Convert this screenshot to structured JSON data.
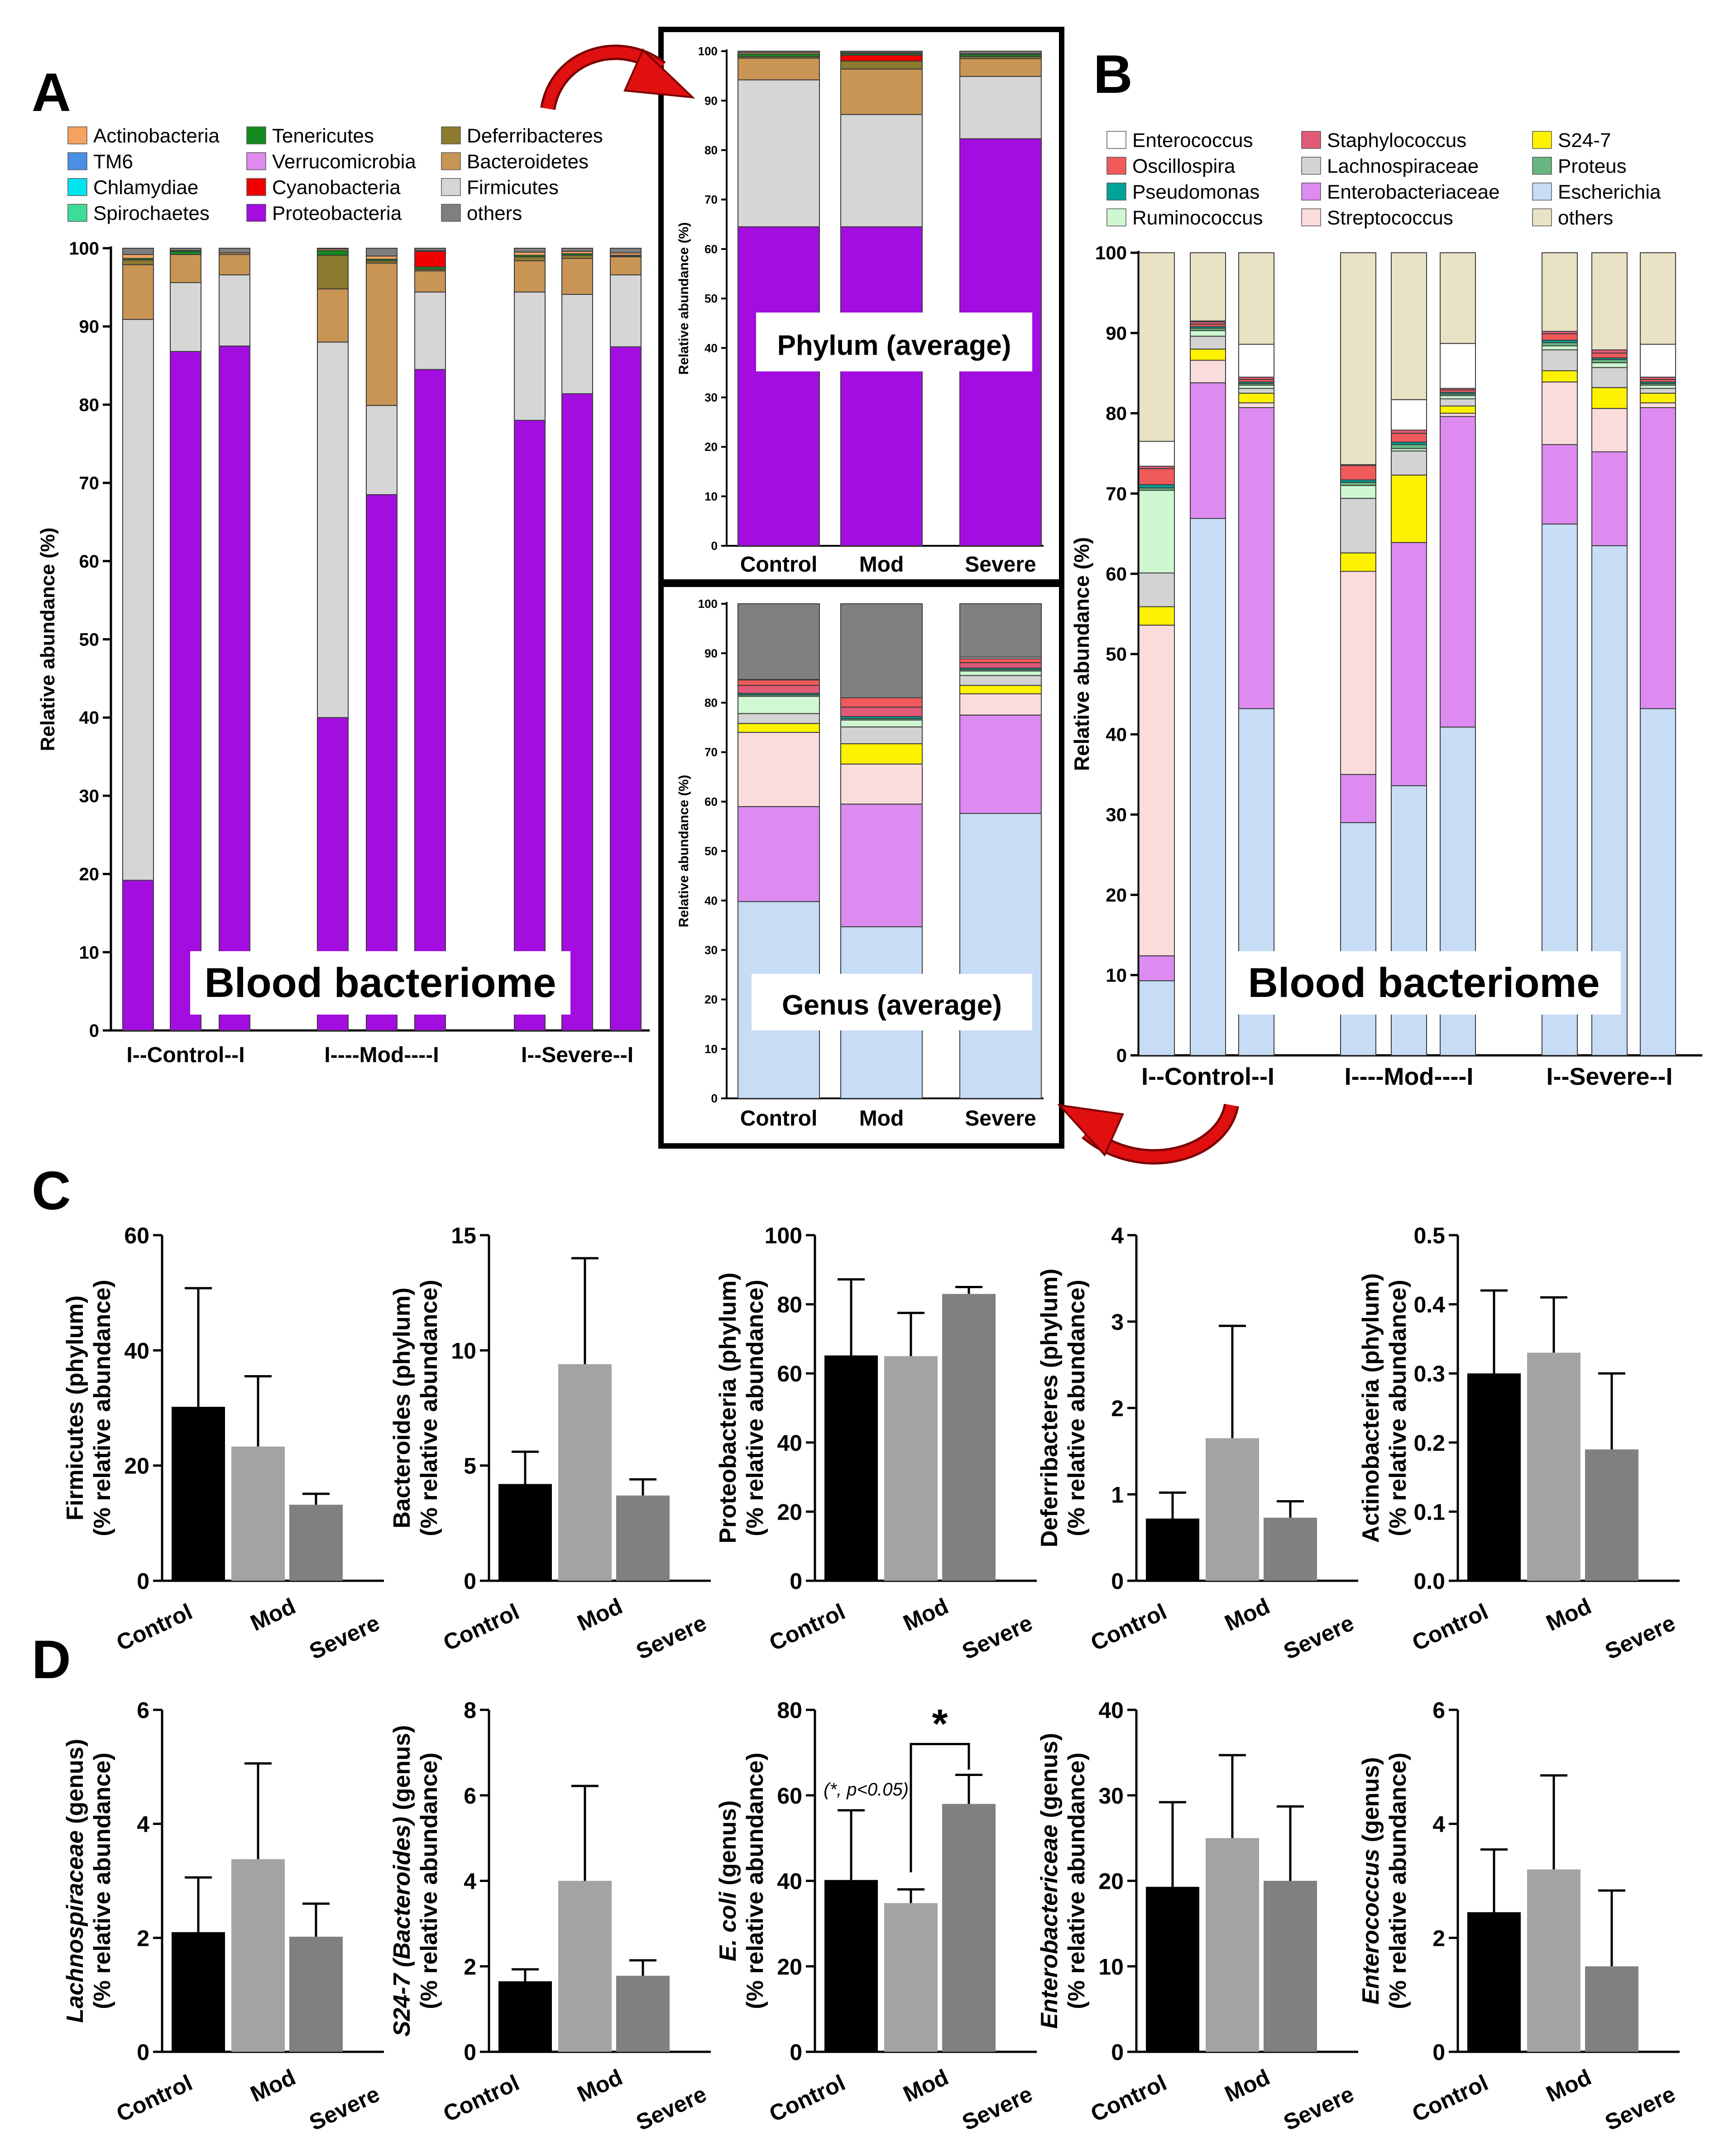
{
  "panel_labels": {
    "A": "A",
    "B": "B",
    "C": "C",
    "D": "D"
  },
  "colors": {
    "Actinobacteria": "#F4A460",
    "TM6": "#4A90E2",
    "Chlamydiae": "#00E5EE",
    "Spirochaetes": "#3DDC97",
    "Tenericutes": "#138A1E",
    "Verrucomicrobia": "#E08BF0",
    "Cyanobacteria": "#F20000",
    "Proteobacteria": "#A30DDF",
    "Deferribacteres": "#8C7A2E",
    "Bacteroidetes": "#C99554",
    "Firmicutes": "#D6D6D6",
    "others_phylum": "#7F7F7F",
    "Enterococcus": "#FFFFFF",
    "Oscillospira": "#F05A5A",
    "Pseudomonas": "#00A29A",
    "Ruminococcus": "#CFF7D2",
    "Staphylococcus": "#E15A78",
    "Lachnospiraceae": "#D3D3D3",
    "Enterobacteriaceae": "#DD8BF0",
    "Streptococcus": "#FADCDC",
    "S24-7": "#FFF200",
    "Proteus": "#68B580",
    "Escherichia": "#C7DCF5",
    "others_genus": "#E9E2C4",
    "others_genus_avg": "#808080",
    "control_bar": "#000000",
    "mod_bar": "#A3A3A6",
    "severe_bar": "#808080",
    "arrow": "#E01010"
  },
  "chart_data": [
    {
      "id": "A",
      "type": "bar",
      "stacked": true,
      "title": "Blood bacteriome",
      "ylabel": "Relative abundance (%)",
      "ylim": [
        0,
        100
      ],
      "yticks": [
        "0",
        "10",
        "20",
        "30",
        "40",
        "50",
        "60",
        "70",
        "80",
        "90",
        "100"
      ],
      "group_labels": [
        "I--Control--I",
        "I----Mod----I",
        "I--Severe--I"
      ],
      "legend": [
        "Actinobacteria",
        "TM6",
        "Chlamydiae",
        "Spirochaetes",
        "Tenericutes",
        "Verrucomicrobia",
        "Cyanobacteria",
        "Proteobacteria",
        "Deferribacteres",
        "Bacteroidetes",
        "Firmicutes",
        "others"
      ],
      "stack_order": [
        "Proteobacteria",
        "Firmicutes",
        "Bacteroidetes",
        "Deferribacteres",
        "Tenericutes",
        "Cyanobacteria",
        "Actinobacteria",
        "others"
      ],
      "bars": [
        {
          "group": "Control",
          "values": [
            19.2,
            71.7,
            7.0,
            0.6,
            0.2,
            0.0,
            0.5,
            0.8
          ]
        },
        {
          "group": "Control",
          "values": [
            86.8,
            8.8,
            3.6,
            0.0,
            0.4,
            0.0,
            0.1,
            0.3
          ]
        },
        {
          "group": "Control",
          "values": [
            87.5,
            9.1,
            2.6,
            0.0,
            0.0,
            0.0,
            0.2,
            0.6
          ]
        },
        {
          "group": "Mod",
          "values": [
            40.0,
            48.0,
            6.8,
            4.3,
            0.6,
            0.0,
            0.2,
            0.1
          ]
        },
        {
          "group": "Mod",
          "values": [
            68.5,
            11.4,
            18.2,
            0.3,
            0.2,
            0.0,
            0.4,
            1.0
          ]
        },
        {
          "group": "Mod",
          "values": [
            84.5,
            9.9,
            2.7,
            0.2,
            0.3,
            2.0,
            0.1,
            0.3
          ]
        },
        {
          "group": "Severe",
          "values": [
            78.0,
            16.4,
            4.0,
            0.5,
            0.2,
            0.0,
            0.4,
            0.5
          ]
        },
        {
          "group": "Severe",
          "values": [
            81.4,
            12.7,
            4.6,
            0.4,
            0.2,
            0.0,
            0.3,
            0.4
          ]
        },
        {
          "group": "Severe",
          "values": [
            87.4,
            9.2,
            2.3,
            0.1,
            0.1,
            0.0,
            0.3,
            0.6
          ]
        }
      ]
    },
    {
      "id": "A_inset",
      "type": "bar",
      "stacked": true,
      "title": "Phylum (average)",
      "ylabel": "Relative abundance (%)",
      "ylim": [
        0,
        100
      ],
      "yticks": [
        "0",
        "10",
        "20",
        "30",
        "40",
        "50",
        "60",
        "70",
        "80",
        "90",
        "100"
      ],
      "categories": [
        "Control",
        "Mod",
        "Severe"
      ],
      "stack_order": [
        "Proteobacteria",
        "Firmicutes",
        "Bacteroidetes",
        "Deferribacteres",
        "Cyanobacteria",
        "Tenericutes",
        "Actinobacteria",
        "others"
      ],
      "bars": [
        {
          "values": [
            64.5,
            29.7,
            4.4,
            0.3,
            0.0,
            0.5,
            0.3,
            0.3
          ]
        },
        {
          "values": [
            64.5,
            22.7,
            9.2,
            1.6,
            1.2,
            0.3,
            0.2,
            0.3
          ]
        },
        {
          "values": [
            82.3,
            12.6,
            3.6,
            0.4,
            0.0,
            0.4,
            0.2,
            0.5
          ]
        }
      ]
    },
    {
      "id": "B",
      "type": "bar",
      "stacked": true,
      "title": "Blood bacteriome",
      "ylabel": "Relative abundance (%)",
      "ylim": [
        0,
        100
      ],
      "yticks": [
        "0",
        "10",
        "20",
        "30",
        "40",
        "50",
        "60",
        "70",
        "80",
        "90",
        "100"
      ],
      "group_labels": [
        "I--Control--I",
        "I----Mod----I",
        "I--Severe--I"
      ],
      "legend": [
        "Enterococcus",
        "Oscillospira",
        "Pseudomonas",
        "Ruminococcus",
        "Staphylococcus",
        "Lachnospiraceae",
        "Enterobacteriaceae",
        "Streptococcus",
        "S24-7",
        "Proteus",
        "Escherichia",
        "others"
      ],
      "stack_order": [
        "Escherichia",
        "Enterobacteriaceae",
        "Streptococcus",
        "S24-7",
        "Lachnospiraceae",
        "Ruminococcus",
        "Proteus",
        "Pseudomonas",
        "Oscillospira",
        "Staphylococcus",
        "Enterococcus",
        "others"
      ],
      "bars": [
        {
          "values": [
            9.3,
            3.1,
            41.2,
            2.3,
            4.2,
            10.3,
            0.3,
            0.4,
            2.0,
            0.3,
            3.1,
            23.5
          ]
        },
        {
          "values": [
            66.9,
            16.9,
            2.8,
            1.4,
            1.6,
            0.7,
            0.3,
            0.2,
            0.3,
            0.3,
            0.1,
            9.0
          ]
        },
        {
          "values": [
            43.2,
            37.5,
            0.6,
            1.2,
            0.6,
            0.4,
            0.2,
            0.2,
            0.3,
            0.3,
            4.1,
            11.4
          ]
        },
        {
          "values": [
            29.0,
            6.0,
            25.3,
            2.3,
            6.8,
            1.6,
            0.4,
            0.3,
            1.8,
            0.1,
            0.0,
            26.4
          ]
        },
        {
          "values": [
            33.6,
            30.3,
            0.0,
            8.4,
            3.0,
            0.3,
            0.5,
            0.3,
            1.1,
            0.4,
            3.8,
            18.3
          ]
        },
        {
          "values": [
            40.9,
            38.7,
            0.4,
            0.9,
            0.9,
            0.4,
            0.2,
            0.2,
            0.3,
            0.2,
            5.6,
            11.3
          ]
        },
        {
          "values": [
            66.2,
            9.9,
            7.8,
            1.4,
            2.6,
            0.5,
            0.4,
            0.3,
            0.8,
            0.3,
            0.0,
            9.8
          ]
        },
        {
          "values": [
            63.5,
            11.7,
            5.4,
            2.6,
            2.5,
            0.6,
            0.4,
            0.2,
            0.6,
            0.4,
            0.0,
            12.1
          ]
        },
        {
          "values": [
            43.2,
            37.5,
            0.6,
            1.2,
            0.6,
            0.4,
            0.2,
            0.2,
            0.3,
            0.3,
            4.1,
            11.4
          ]
        }
      ]
    },
    {
      "id": "B_inset",
      "type": "bar",
      "stacked": true,
      "title": "Genus (average)",
      "ylabel": "Relative abundance (%)",
      "ylim": [
        0,
        100
      ],
      "yticks": [
        "0",
        "10",
        "20",
        "30",
        "40",
        "50",
        "60",
        "70",
        "80",
        "90",
        "100"
      ],
      "categories": [
        "Control",
        "Mod",
        "Severe"
      ],
      "stack_order": [
        "Escherichia",
        "Enterobacteriaceae",
        "Streptococcus",
        "S24-7",
        "Lachnospiraceae",
        "Ruminococcus",
        "Proteus",
        "Pseudomonas",
        "Staphylococcus",
        "Oscillospira",
        "Enterococcus",
        "others"
      ],
      "bars": [
        {
          "values": [
            39.8,
            19.2,
            15.0,
            1.8,
            2.0,
            3.5,
            0.3,
            0.3,
            1.6,
            1.1,
            0.1,
            15.3
          ]
        },
        {
          "values": [
            34.7,
            24.8,
            8.1,
            4.1,
            3.4,
            1.4,
            0.3,
            0.4,
            1.9,
            1.9,
            0.0,
            19.0
          ]
        },
        {
          "values": [
            57.6,
            19.9,
            4.3,
            1.7,
            2.0,
            0.9,
            0.3,
            0.3,
            1.1,
            0.8,
            0.3,
            10.8
          ]
        }
      ]
    },
    {
      "id": "C1",
      "type": "bar",
      "categories": [
        "Control",
        "Mod",
        "Severe"
      ],
      "ylabel_main": "Firmicutes (phylum)",
      "ylabel_sub": "(% relative abundance)",
      "ylim": [
        0,
        60
      ],
      "yticks": [
        "0",
        "20",
        "40",
        "60"
      ],
      "values": [
        30.2,
        23.3,
        13.2
      ],
      "errors": [
        20.6,
        12.2,
        1.9
      ]
    },
    {
      "id": "C2",
      "type": "bar",
      "categories": [
        "Control",
        "Mod",
        "Severe"
      ],
      "ylabel_main": "Bacteroides (phylum)",
      "ylabel_sub": "(% relative abundance)",
      "ylim": [
        0,
        15
      ],
      "yticks": [
        "0",
        "5",
        "10",
        "15"
      ],
      "values": [
        4.2,
        9.4,
        3.7
      ],
      "errors": [
        1.4,
        4.6,
        0.7
      ]
    },
    {
      "id": "C3",
      "type": "bar",
      "categories": [
        "Control",
        "Mod",
        "Severe"
      ],
      "ylabel_main": "Proteobacteria (phylum)",
      "ylabel_sub": "(% relative abundance)",
      "ylim": [
        0,
        100
      ],
      "yticks": [
        "0",
        "20",
        "40",
        "60",
        "80",
        "100"
      ],
      "values": [
        65.2,
        65.0,
        83.0
      ],
      "errors": [
        22.0,
        12.5,
        2.0
      ]
    },
    {
      "id": "C4",
      "type": "bar",
      "categories": [
        "Control",
        "Mod",
        "Severe"
      ],
      "ylabel_main": "Deferribacteres (phylum)",
      "ylabel_sub": "(% relative abundance)",
      "ylim": [
        0,
        4
      ],
      "yticks": [
        "0",
        "1",
        "2",
        "3",
        "4"
      ],
      "values": [
        0.72,
        1.65,
        0.73
      ],
      "errors": [
        0.3,
        1.3,
        0.19
      ]
    },
    {
      "id": "C5",
      "type": "bar",
      "categories": [
        "Control",
        "Mod",
        "Severe"
      ],
      "ylabel_main": "Actinobacteria (phylum)",
      "ylabel_sub": "(% relative abundance)",
      "ylim": [
        0,
        0.5
      ],
      "yticks": [
        "0.0",
        "0.1",
        "0.2",
        "0.3",
        "0.4",
        "0.5"
      ],
      "values": [
        0.3,
        0.33,
        0.19
      ],
      "errors": [
        0.12,
        0.08,
        0.11
      ]
    },
    {
      "id": "D1",
      "type": "bar",
      "categories": [
        "Control",
        "Mod",
        "Severe"
      ],
      "ylabel_main": "Lachnospiraceae",
      "ylabel_italic": true,
      "ylabel_suffix": " (genus)",
      "ylabel_sub": "(% relative abundance)",
      "ylim": [
        0,
        6
      ],
      "yticks": [
        "0",
        "2",
        "4",
        "6"
      ],
      "values": [
        2.1,
        3.38,
        2.02
      ],
      "errors": [
        0.96,
        1.68,
        0.58
      ]
    },
    {
      "id": "D2",
      "type": "bar",
      "categories": [
        "Control",
        "Mod",
        "Severe"
      ],
      "ylabel_main": "S24-7 (Bacteroides)",
      "ylabel_italic": true,
      "ylabel_suffix": " (genus)",
      "ylabel_sub": "(% relative abundance)",
      "ylim": [
        0,
        8
      ],
      "yticks": [
        "0",
        "2",
        "4",
        "6",
        "8"
      ],
      "values": [
        1.65,
        4.0,
        1.78
      ],
      "errors": [
        0.28,
        2.22,
        0.36
      ]
    },
    {
      "id": "D3",
      "type": "bar",
      "categories": [
        "Control",
        "Mod",
        "Severe"
      ],
      "ylabel_main": "E. coli",
      "ylabel_italic": true,
      "ylabel_suffix": " (genus)",
      "ylabel_sub": "(% relative abundance)",
      "ylim": [
        0,
        80
      ],
      "yticks": [
        "0",
        "20",
        "40",
        "60",
        "80"
      ],
      "values": [
        40.2,
        34.8,
        58.0
      ],
      "errors": [
        16.3,
        3.2,
        6.8
      ],
      "significance": {
        "between": [
          "Mod",
          "Severe"
        ],
        "marker": "*",
        "note": "(*, p<0.05)"
      }
    },
    {
      "id": "D4",
      "type": "bar",
      "categories": [
        "Control",
        "Mod",
        "Severe"
      ],
      "ylabel_main": "Enterobactericeae",
      "ylabel_italic": true,
      "ylabel_suffix": " (genus)",
      "ylabel_sub": "(% relative abundance)",
      "ylim": [
        0,
        40
      ],
      "yticks": [
        "0",
        "10",
        "20",
        "30",
        "40"
      ],
      "values": [
        19.3,
        25.0,
        20.0
      ],
      "errors": [
        9.9,
        9.7,
        8.7
      ]
    },
    {
      "id": "D5",
      "type": "bar",
      "categories": [
        "Control",
        "Mod",
        "Severe"
      ],
      "ylabel_main": "Enterococcus",
      "ylabel_italic": true,
      "ylabel_suffix": " (genus)",
      "ylabel_sub": "(% relative abundance)",
      "ylim": [
        0,
        6
      ],
      "yticks": [
        "0",
        "2",
        "4",
        "6"
      ],
      "values": [
        2.45,
        3.2,
        1.5
      ],
      "errors": [
        1.1,
        1.65,
        1.33
      ]
    }
  ]
}
